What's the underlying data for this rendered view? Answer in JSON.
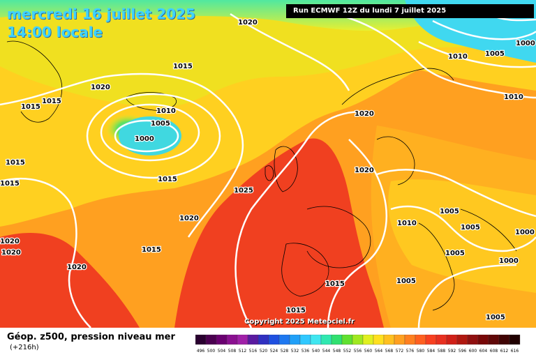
{
  "header": {
    "date": "mercredi 16 juillet 2025",
    "time": "14:00 locale",
    "run": "Run ECMWF 12Z du lundi 7 juillet 2025"
  },
  "copyright": "Copyright 2025 Meteociel.fr",
  "legend": {
    "title": "Géop. z500, pression niveau mer",
    "subtitle": "(+216h)",
    "scale": [
      {
        "label": "496",
        "color": "#2a0030"
      },
      {
        "label": "500",
        "color": "#4b0050"
      },
      {
        "label": "504",
        "color": "#6a0070"
      },
      {
        "label": "508",
        "color": "#8a1090"
      },
      {
        "label": "512",
        "color": "#a020a8"
      },
      {
        "label": "516",
        "color": "#5a1aa0"
      },
      {
        "label": "520",
        "color": "#3030c0"
      },
      {
        "label": "524",
        "color": "#1f50e0"
      },
      {
        "label": "528",
        "color": "#1e78f0"
      },
      {
        "label": "532",
        "color": "#20a0f8"
      },
      {
        "label": "536",
        "color": "#30c8ff"
      },
      {
        "label": "540",
        "color": "#40e6f0"
      },
      {
        "label": "544",
        "color": "#30e8b0"
      },
      {
        "label": "548",
        "color": "#30e070"
      },
      {
        "label": "552",
        "color": "#60e030"
      },
      {
        "label": "556",
        "color": "#a0e820"
      },
      {
        "label": "560",
        "color": "#e0f020"
      },
      {
        "label": "564",
        "color": "#ffe020"
      },
      {
        "label": "568",
        "color": "#ffc020"
      },
      {
        "label": "572",
        "color": "#ffa020"
      },
      {
        "label": "576",
        "color": "#ff8020"
      },
      {
        "label": "580",
        "color": "#ff6020"
      },
      {
        "label": "584",
        "color": "#f84020"
      },
      {
        "label": "588",
        "color": "#e83020"
      },
      {
        "label": "592",
        "color": "#d02018"
      },
      {
        "label": "596",
        "color": "#b01810"
      },
      {
        "label": "600",
        "color": "#901010"
      },
      {
        "label": "604",
        "color": "#780808"
      },
      {
        "label": "608",
        "color": "#600808"
      },
      {
        "label": "612",
        "color": "#400404"
      },
      {
        "label": "616",
        "color": "#200000"
      }
    ]
  },
  "isobar_labels": [
    "1020",
    "1015",
    "1015",
    "1020",
    "1015",
    "1010",
    "1005",
    "1000",
    "1015",
    "1015",
    "1015",
    "1025",
    "1020",
    "1020",
    "1020",
    "1015",
    "1020",
    "1020",
    "1015",
    "1015",
    "1005",
    "1010",
    "1005",
    "1000",
    "1005",
    "1000",
    "1005",
    "1005",
    "1005",
    "1010",
    "1010",
    "1000",
    "1020"
  ]
}
